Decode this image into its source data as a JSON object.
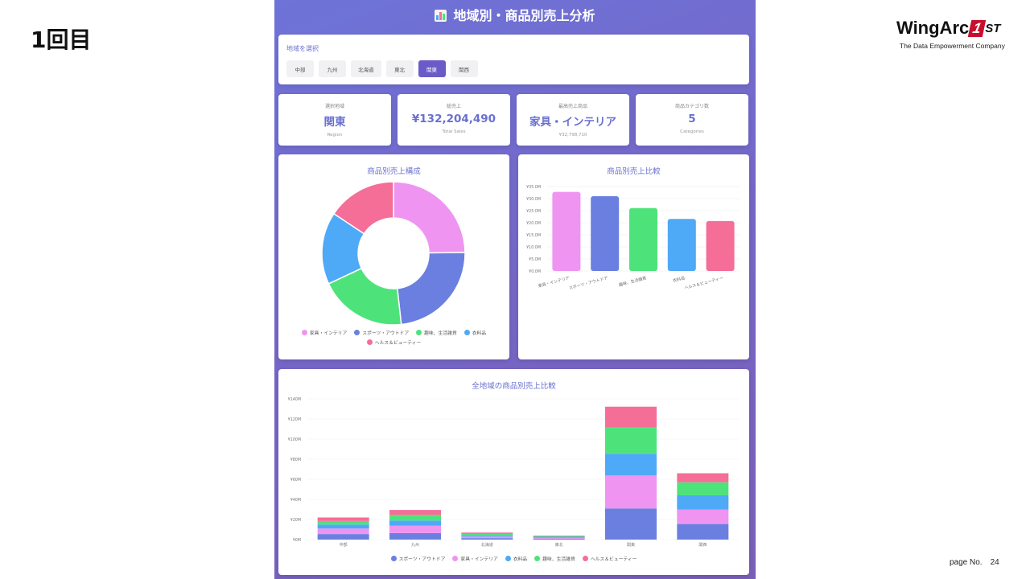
{
  "slide": {
    "title": "1回目",
    "page_label": "page No.",
    "page_number": "24",
    "logo": {
      "name": "WingArc",
      "one": "1",
      "suffix": "ST",
      "tagline": "The Data Empowerment Company"
    }
  },
  "dashboard": {
    "title": "地域別・商品別売上分析",
    "region_select": {
      "label": "地域を選択",
      "options": [
        "中部",
        "九州",
        "北海道",
        "東北",
        "関東",
        "関西"
      ],
      "selected": "関東"
    },
    "stats": [
      {
        "label": "選択地域",
        "value": "関東",
        "sub": "Region"
      },
      {
        "label": "総売上",
        "value": "¥132,204,490",
        "sub": "Total Sales"
      },
      {
        "label": "最高売上商品",
        "value": "家具・インテリア",
        "sub": "¥32,798,710"
      },
      {
        "label": "商品カテゴリ数",
        "value": "5",
        "sub": "Categories"
      }
    ],
    "colors": {
      "家具・インテリア": "#ef94f1",
      "スポーツ・アウトドア": "#6a7fe0",
      "趣味、生活雑貨": "#4ee37a",
      "衣料品": "#4ea9f7",
      "ヘルス＆ビューティー": "#f46e98"
    }
  },
  "chart_data": [
    {
      "type": "pie",
      "title": "商品別売上構成",
      "categories": [
        "家具・インテリア",
        "スポーツ・アウトドア",
        "趣味、生活雑貨",
        "衣料品",
        "ヘルス＆ビューティー"
      ],
      "values": [
        32798710,
        31009190,
        26100000,
        21600000,
        20696590
      ],
      "legend_position": "bottom"
    },
    {
      "type": "bar",
      "title": "商品別売上比較",
      "categories": [
        "家具・インテリア",
        "スポーツ・アウトドア",
        "趣味、生活雑貨",
        "衣料品",
        "ヘルス＆ビューティー"
      ],
      "values": [
        32.8,
        31.0,
        26.1,
        21.6,
        20.7
      ],
      "unit": "M",
      "yticks": [
        "¥0.0M",
        "¥5.0M",
        "¥10.0M",
        "¥15.0M",
        "¥20.0M",
        "¥25.0M",
        "¥30.0M",
        "¥35.0M"
      ],
      "ylim": [
        0,
        35
      ],
      "grid": true
    },
    {
      "type": "bar",
      "stacked": true,
      "title": "全地域の商品別売上比較",
      "categories": [
        "中部",
        "九州",
        "北海道",
        "東北",
        "関東",
        "関西"
      ],
      "yticks": [
        "¥0M",
        "¥20M",
        "¥40M",
        "¥60M",
        "¥80M",
        "¥100M",
        "¥120M",
        "¥140M"
      ],
      "ylim": [
        0,
        140
      ],
      "unit": "M",
      "series": [
        {
          "name": "スポーツ・アウトドア",
          "values": [
            5.5,
            6.5,
            1.5,
            1.0,
            31.0,
            15.5
          ]
        },
        {
          "name": "家具・インテリア",
          "values": [
            5.5,
            7.5,
            1.5,
            1.0,
            32.8,
            14.5
          ]
        },
        {
          "name": "衣料品",
          "values": [
            4.0,
            5.0,
            1.2,
            0.8,
            21.6,
            14.0
          ]
        },
        {
          "name": "趣味、生活雑貨",
          "values": [
            3.5,
            5.5,
            1.8,
            0.7,
            26.1,
            13.0
          ]
        },
        {
          "name": "ヘルス＆ビューティー",
          "values": [
            3.5,
            5.0,
            1.0,
            0.5,
            20.7,
            9.0
          ]
        }
      ],
      "legend_position": "bottom"
    }
  ]
}
